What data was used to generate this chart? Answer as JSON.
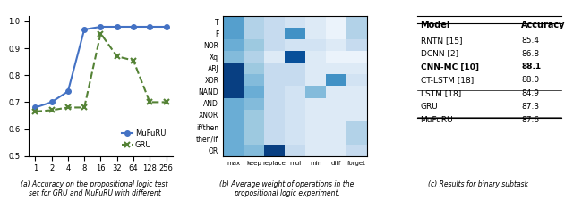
{
  "panel_a": {
    "x": [
      1,
      2,
      4,
      8,
      16,
      32,
      64,
      128,
      256
    ],
    "mufuru": [
      0.68,
      0.7,
      0.74,
      0.97,
      0.98,
      0.98,
      0.98,
      0.98,
      0.98
    ],
    "gru": [
      0.665,
      0.67,
      0.68,
      0.68,
      0.955,
      0.87,
      0.855,
      0.7,
      0.7
    ],
    "ylim": [
      0.5,
      1.02
    ],
    "yticks": [
      0.5,
      0.6,
      0.7,
      0.8,
      0.9,
      1.0
    ],
    "xlabel_ticks": [
      "1",
      "2",
      "4",
      "8",
      "16",
      "32",
      "64",
      "128",
      "256"
    ],
    "mufuru_color": "#4472C4",
    "gru_color": "#548235",
    "caption_a": "(a) Accuracy on the propositional logic test\nset for GRU and MuFuRU with different"
  },
  "panel_b": {
    "rows": [
      "T",
      "F",
      "NOR",
      "Xq",
      "ABJ",
      "XOR",
      "NAND",
      "AND",
      "XNOR",
      "if/then",
      "then/if",
      "OR"
    ],
    "cols": [
      "max",
      "keep",
      "replace",
      "mul",
      "min",
      "diff",
      "forget"
    ],
    "data": [
      [
        0.55,
        0.35,
        0.3,
        0.25,
        0.2,
        0.15,
        0.35
      ],
      [
        0.55,
        0.35,
        0.3,
        0.6,
        0.2,
        0.15,
        0.35
      ],
      [
        0.5,
        0.4,
        0.3,
        0.25,
        0.25,
        0.2,
        0.3
      ],
      [
        0.45,
        0.35,
        0.2,
        0.8,
        0.2,
        0.15,
        0.15
      ],
      [
        0.85,
        0.4,
        0.3,
        0.3,
        0.2,
        0.2,
        0.2
      ],
      [
        0.85,
        0.45,
        0.3,
        0.3,
        0.2,
        0.6,
        0.25
      ],
      [
        0.85,
        0.5,
        0.3,
        0.25,
        0.45,
        0.2,
        0.2
      ],
      [
        0.5,
        0.45,
        0.3,
        0.25,
        0.2,
        0.2,
        0.2
      ],
      [
        0.5,
        0.4,
        0.3,
        0.25,
        0.2,
        0.2,
        0.2
      ],
      [
        0.5,
        0.4,
        0.3,
        0.25,
        0.2,
        0.2,
        0.35
      ],
      [
        0.5,
        0.4,
        0.3,
        0.25,
        0.2,
        0.2,
        0.35
      ],
      [
        0.5,
        0.45,
        0.85,
        0.3,
        0.2,
        0.2,
        0.3
      ]
    ],
    "cmap": "Blues",
    "caption_b": "(b) Average weight of operations in the\npropositional logic experiment."
  },
  "panel_c": {
    "rows_models": [
      "RNTN [15]",
      "DCNN [2]",
      "CNN-MC [10]",
      "CT-LSTM [18]",
      "LSTM [18]",
      "GRU",
      "MuFuRU"
    ],
    "rows_acc": [
      "85.4",
      "86.8",
      "88.1",
      "88.0",
      "84.9",
      "87.3",
      "87.6"
    ],
    "bold_rows": [
      2
    ],
    "underline_rows": [
      6
    ],
    "separator_after": 4,
    "caption_c": "(c) Results for binary subtask"
  }
}
